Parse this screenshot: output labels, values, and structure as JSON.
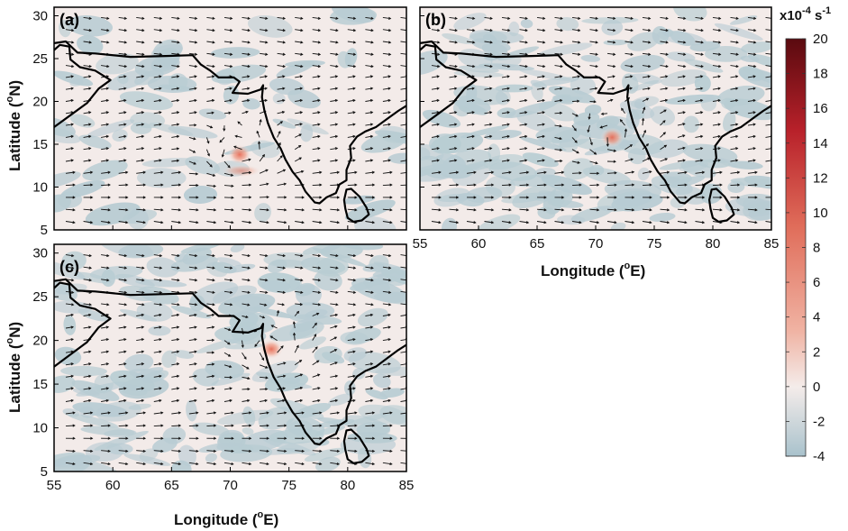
{
  "figure": {
    "lon_range": [
      55,
      85
    ],
    "lat_range": [
      5,
      31
    ],
    "lon_ticks": [
      "55",
      "60",
      "65",
      "70",
      "75",
      "80",
      "85"
    ],
    "lat_ticks": [
      "5",
      "10",
      "15",
      "20",
      "25",
      "30"
    ],
    "xlabel_main": "Longitude (",
    "xlabel_deg": "o",
    "xlabel_end": "E)",
    "ylabel_main": "Latitude (",
    "ylabel_deg": "o",
    "ylabel_end": "N)",
    "panels": [
      {
        "label": "(a)",
        "id": "a",
        "vortex": [
          70.8,
          13.8
        ]
      },
      {
        "label": "(b)",
        "id": "b",
        "vortex": [
          71.4,
          15.8
        ]
      },
      {
        "label": "(c)",
        "id": "c",
        "vortex": [
          73.5,
          19.0
        ]
      }
    ]
  },
  "colorbar": {
    "title_base": "x10",
    "title_exp": "-4",
    "title_unit": " s",
    "title_unit_exp": "-1",
    "ticks": [
      "20",
      "18",
      "16",
      "14",
      "12",
      "10",
      "8",
      "6",
      "4",
      "2",
      "0",
      "-2",
      "-4"
    ],
    "range": [
      -4,
      20
    ],
    "colors": [
      "#a9c2cc",
      "#f4ecea",
      "#f0b3a3",
      "#e06d5a",
      "#b8212a",
      "#5a0a0f"
    ]
  },
  "colors": {
    "land_outline": "#000000",
    "background": "#f3ebe9",
    "negative": "#b8ccd3",
    "positive": "#ec9a86",
    "arrow": "#111111"
  }
}
